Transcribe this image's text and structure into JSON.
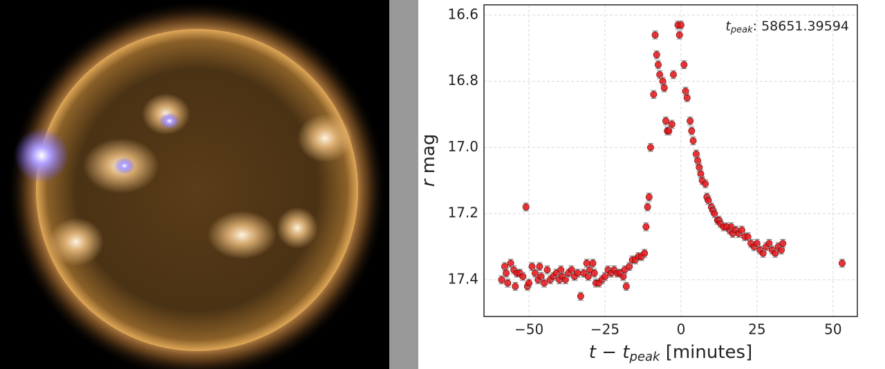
{
  "chart_data": {
    "type": "scatter",
    "annotation": {
      "italic": "t",
      "subscript": "peak",
      "text": ": 58651.39594"
    },
    "xlabel": {
      "italic": "t − t",
      "subscript": "peak",
      "text": " [minutes]"
    },
    "ylabel": {
      "italic": "r",
      "text": " mag"
    },
    "x": [
      -59,
      -58,
      -57.5,
      -57,
      -56,
      -55,
      -54.5,
      -54,
      -53,
      -52,
      -51,
      -50.5,
      -50,
      -49,
      -48,
      -47,
      -46.5,
      -46,
      -45,
      -44,
      -43,
      -42,
      -41,
      -40,
      -39.5,
      -39,
      -38,
      -37,
      -36,
      -35,
      -34,
      -33,
      -32,
      -31,
      -30.5,
      -30,
      -29,
      -28.5,
      -28,
      -27,
      -26,
      -25,
      -24,
      -23,
      -22,
      -21,
      -20,
      -19,
      -18.5,
      -18,
      -17,
      -16,
      -15,
      -14,
      -13,
      -12,
      -11.5,
      -11,
      -10.5,
      -10,
      -9,
      -8.5,
      -8,
      -7.5,
      -7,
      -6,
      -5.5,
      -5,
      -4.5,
      -4,
      -3,
      -2.5,
      -1,
      -0.5,
      0,
      1,
      1.5,
      2,
      3,
      3.5,
      4,
      5,
      5.5,
      6,
      6.5,
      7,
      8,
      8.5,
      9,
      10,
      10.5,
      11,
      12,
      12.5,
      13,
      14,
      15,
      16,
      16.5,
      17,
      18,
      19,
      20,
      21,
      22,
      23,
      24,
      25,
      26,
      27,
      28,
      29,
      30,
      31,
      32,
      33,
      33.5,
      53
    ],
    "values": [
      17.4,
      17.36,
      17.38,
      17.41,
      17.35,
      17.37,
      17.42,
      17.38,
      17.38,
      17.39,
      17.18,
      17.42,
      17.41,
      17.36,
      17.38,
      17.4,
      17.36,
      17.39,
      17.41,
      17.37,
      17.4,
      17.39,
      17.38,
      17.4,
      17.37,
      17.39,
      17.4,
      17.38,
      17.37,
      17.39,
      17.38,
      17.45,
      17.38,
      17.35,
      17.39,
      17.37,
      17.35,
      17.38,
      17.41,
      17.41,
      17.4,
      17.39,
      17.37,
      17.38,
      17.37,
      17.38,
      17.38,
      17.39,
      17.37,
      17.42,
      17.36,
      17.34,
      17.34,
      17.33,
      17.33,
      17.32,
      17.24,
      17.18,
      17.15,
      17.0,
      16.84,
      16.66,
      16.72,
      16.75,
      16.78,
      16.8,
      16.82,
      16.92,
      16.95,
      16.95,
      16.93,
      16.78,
      16.63,
      16.66,
      16.63,
      16.75,
      16.83,
      16.85,
      16.92,
      16.95,
      16.98,
      17.02,
      17.04,
      17.06,
      17.08,
      17.1,
      17.11,
      17.15,
      17.16,
      17.18,
      17.19,
      17.2,
      17.22,
      17.22,
      17.23,
      17.24,
      17.24,
      17.25,
      17.24,
      17.26,
      17.25,
      17.26,
      17.25,
      17.27,
      17.27,
      17.29,
      17.3,
      17.29,
      17.31,
      17.32,
      17.3,
      17.29,
      17.31,
      17.32,
      17.3,
      17.31,
      17.29,
      17.35
    ],
    "error": 0.012,
    "color": "#e8151b",
    "xlim": [
      -64.8,
      58
    ],
    "ylim": [
      17.511,
      16.569
    ],
    "xticks": [
      {
        "value": -50,
        "label": "−50"
      },
      {
        "value": -25,
        "label": "−25"
      },
      0,
      25,
      50
    ],
    "yticks": [
      16.6,
      16.8,
      {
        "value": 17,
        "label": "17.0"
      },
      17.2,
      17.4
    ],
    "grid": true
  }
}
